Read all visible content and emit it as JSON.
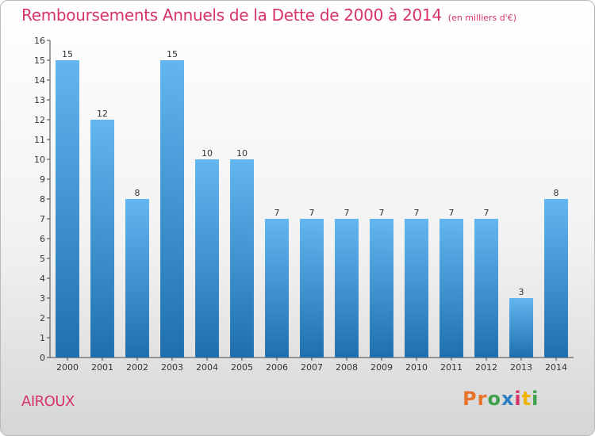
{
  "title": "Remboursements Annuels de la Dette de 2000 à 2014",
  "unit": "(en milliers d'€)",
  "commune": "AIROUX",
  "logo": {
    "text": "Proxiti",
    "colors": [
      "#e8742c",
      "#e8742c",
      "#3fa14a",
      "#2f7fc4",
      "#d6336c",
      "#f0b400",
      "#3fa14a"
    ]
  },
  "colors": {
    "title": "#d6336c",
    "bar_light": "#63b6f0",
    "bar_dark": "#1f6faf"
  },
  "chart_data": {
    "type": "bar",
    "categories": [
      "2000",
      "2001",
      "2002",
      "2003",
      "2004",
      "2005",
      "2006",
      "2007",
      "2008",
      "2009",
      "2010",
      "2011",
      "2012",
      "2013",
      "2014"
    ],
    "values": [
      15,
      12,
      8,
      15,
      10,
      10,
      7,
      7,
      7,
      7,
      7,
      7,
      7,
      3,
      8
    ],
    "title": "Remboursements Annuels de la Dette de 2000 à 2014",
    "xlabel": "",
    "ylabel": "",
    "ylim": [
      0,
      16
    ],
    "yticks": [
      0,
      1,
      2,
      3,
      4,
      5,
      6,
      7,
      8,
      9,
      10,
      11,
      12,
      13,
      14,
      15,
      16
    ],
    "grid": false,
    "legend": "none"
  }
}
